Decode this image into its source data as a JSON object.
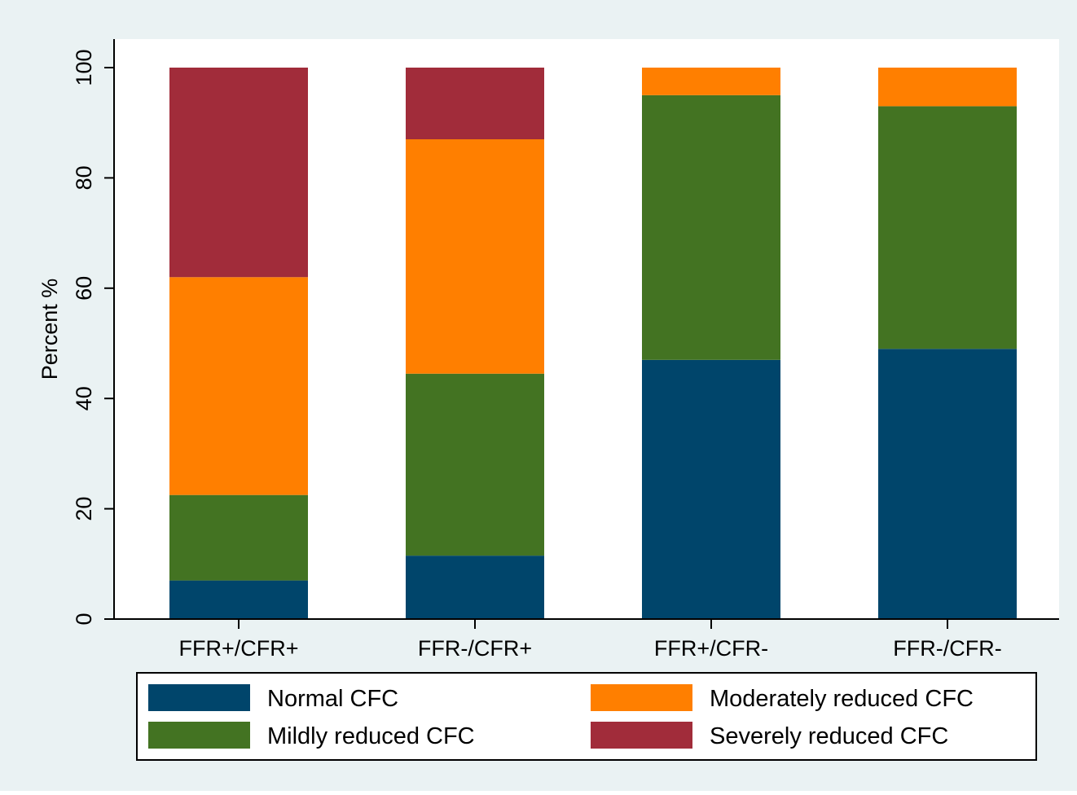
{
  "chart_data": {
    "type": "bar",
    "stacked": true,
    "title": "",
    "xlabel": "",
    "ylabel": "Percent %",
    "ylim": [
      0,
      100
    ],
    "yticks": [
      0,
      20,
      40,
      60,
      80,
      100
    ],
    "grid": false,
    "legend_position": "bottom",
    "categories": [
      "FFR+/CFR+",
      "FFR-/CFR+",
      "FFR+/CFR-",
      "FFR-/CFR-"
    ],
    "series": [
      {
        "name": "Normal CFC",
        "color": "#00456b",
        "values": [
          7,
          11.5,
          47,
          49
        ]
      },
      {
        "name": "Mildly reduced CFC",
        "color": "#437322",
        "values": [
          15.5,
          33,
          48,
          44
        ]
      },
      {
        "name": "Moderately reduced CFC",
        "color": "#ff7f00",
        "values": [
          39.5,
          42.5,
          5,
          7
        ]
      },
      {
        "name": "Severely reduced CFC",
        "color": "#a12c3a",
        "values": [
          38,
          13,
          0,
          0
        ]
      }
    ],
    "legend_order": [
      0,
      2,
      1,
      3
    ]
  }
}
